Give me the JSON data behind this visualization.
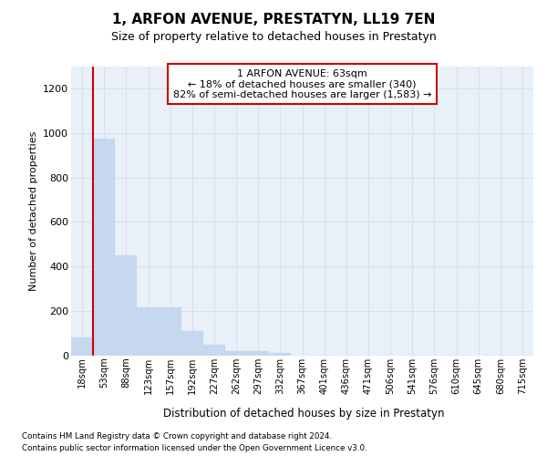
{
  "title": "1, ARFON AVENUE, PRESTATYN, LL19 7EN",
  "subtitle": "Size of property relative to detached houses in Prestatyn",
  "xlabel": "Distribution of detached houses by size in Prestatyn",
  "ylabel": "Number of detached properties",
  "bar_labels": [
    "18sqm",
    "53sqm",
    "88sqm",
    "123sqm",
    "157sqm",
    "192sqm",
    "227sqm",
    "262sqm",
    "297sqm",
    "332sqm",
    "367sqm",
    "401sqm",
    "436sqm",
    "471sqm",
    "506sqm",
    "541sqm",
    "576sqm",
    "610sqm",
    "645sqm",
    "680sqm",
    "715sqm"
  ],
  "bar_values": [
    80,
    975,
    450,
    215,
    215,
    110,
    50,
    22,
    20,
    12,
    0,
    0,
    0,
    0,
    0,
    0,
    0,
    0,
    0,
    0,
    0
  ],
  "bar_color": "#c5d8f0",
  "bar_edgecolor": "#c5d8f0",
  "property_line_x": 0.5,
  "annotation_line1": "1 ARFON AVENUE: 63sqm",
  "annotation_line2": "← 18% of detached houses are smaller (340)",
  "annotation_line3": "82% of semi-detached houses are larger (1,583) →",
  "annotation_box_edgecolor": "#cc0000",
  "grid_color": "#d4e2f0",
  "background_color": "#eaf0f8",
  "ylim": [
    0,
    1300
  ],
  "yticks": [
    0,
    200,
    400,
    600,
    800,
    1000,
    1200
  ],
  "footer_line1": "Contains HM Land Registry data © Crown copyright and database right 2024.",
  "footer_line2": "Contains public sector information licensed under the Open Government Licence v3.0."
}
